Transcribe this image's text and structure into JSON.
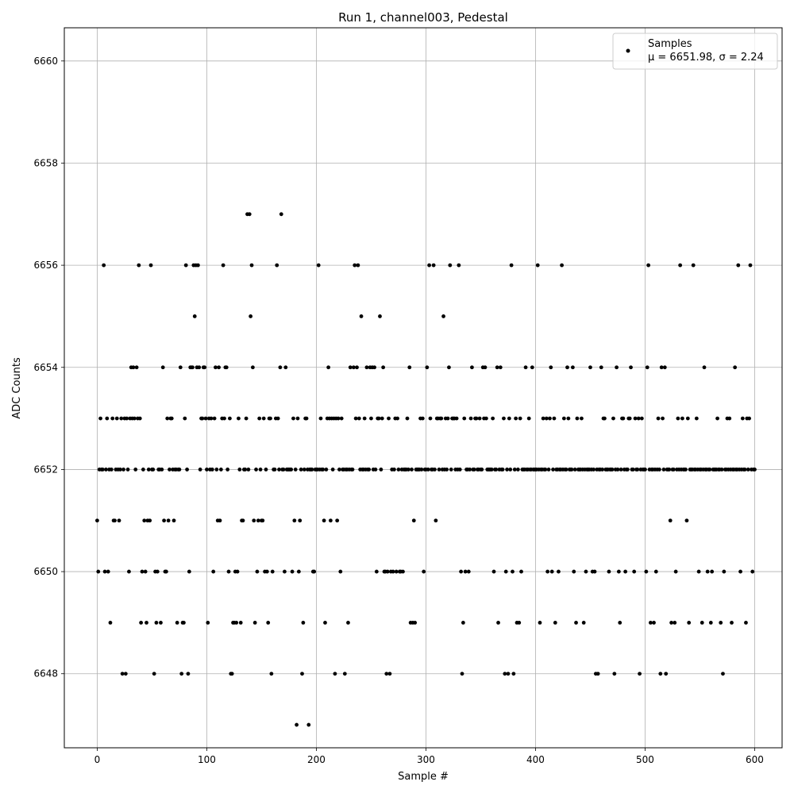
{
  "chart_data": {
    "type": "scatter",
    "title": "Run 1, channel003, Pedestal",
    "xlabel": "Sample #",
    "ylabel": "ADC Counts",
    "xlim": [
      -30,
      625
    ],
    "ylim": [
      6646.55,
      6660.65
    ],
    "xticks": [
      0,
      100,
      200,
      300,
      400,
      500,
      600
    ],
    "yticks": [
      6648,
      6650,
      6652,
      6654,
      6656,
      6658,
      6660
    ],
    "grid": true,
    "legend_position": "top-right",
    "legend": {
      "series_label": "Samples",
      "stats_label": "μ = 6651.98, σ = 2.24"
    },
    "series": [
      {
        "name": "Samples",
        "color": "#000000",
        "y": [
          6651,
          6650,
          6652,
          6653,
          6652,
          6652,
          6656,
          6650,
          6652,
          6653,
          6650,
          6652,
          6649,
          6652,
          6653,
          6651,
          6651,
          6652,
          6653,
          6652,
          6651,
          6652,
          6653,
          6648,
          6652,
          6653,
          6648,
          6653,
          6652,
          6650,
          6653,
          6654,
          6653,
          6654,
          6653,
          6652,
          6654,
          6653,
          6656,
          6653,
          6649,
          6650,
          6652,
          6651,
          6650,
          6649,
          6651,
          6652,
          6651,
          6656,
          6652,
          6652,
          6648,
          6650,
          6649,
          6650,
          6652,
          6652,
          6649,
          6652,
          6654,
          6651,
          6650,
          6650,
          6653,
          6651,
          6652,
          6653,
          6653,
          6652,
          6651,
          6652,
          6652,
          6649,
          6652,
          6652,
          6654,
          6648,
          6649,
          6649,
          6653,
          6656,
          6652,
          6648,
          6650,
          6654,
          6654,
          6654,
          6656,
          6655,
          6656,
          6654,
          6656,
          6654,
          6652,
          6653,
          6653,
          6654,
          6654,
          6653,
          6652,
          6649,
          6653,
          6652,
          6653,
          6652,
          6650,
          6653,
          6654,
          6652,
          6651,
          6654,
          6651,
          6652,
          6653,
          6656,
          6653,
          6654,
          6654,
          6652,
          6650,
          6653,
          6648,
          6648,
          6649,
          6649,
          6650,
          6649,
          6650,
          6653,
          6652,
          6649,
          6651,
          6651,
          6652,
          6652,
          6653,
          6657,
          6652,
          6657,
          6655,
          6656,
          6654,
          6651,
          6649,
          6652,
          6650,
          6651,
          6653,
          6652,
          6651,
          6651,
          6653,
          6650,
          6652,
          6650,
          6649,
          6653,
          6653,
          6648,
          6650,
          6652,
          6652,
          6653,
          6656,
          6653,
          6652,
          6654,
          6657,
          6652,
          6652,
          6650,
          6654,
          6652,
          6652,
          6652,
          6652,
          6652,
          6650,
          6653,
          6651,
          6652,
          6647,
          6653,
          6650,
          6651,
          6652,
          6648,
          6649,
          6652,
          6653,
          6653,
          6652,
          6647,
          6652,
          6652,
          6652,
          6650,
          6650,
          6652,
          6652,
          6652,
          6656,
          6652,
          6653,
          6652,
          6652,
          6651,
          6649,
          6652,
          6653,
          6654,
          6653,
          6651,
          6653,
          6652,
          6653,
          6648,
          6653,
          6651,
          6653,
          6652,
          6650,
          6653,
          6652,
          6652,
          6648,
          6652,
          6652,
          6649,
          6652,
          6654,
          6652,
          6652,
          6654,
          6656,
          6653,
          6654,
          6656,
          6653,
          6652,
          6655,
          6652,
          6652,
          6653,
          6652,
          6654,
          6652,
          6652,
          6654,
          6653,
          6654,
          6652,
          6654,
          6652,
          6650,
          6653,
          6653,
          6655,
          6652,
          6653,
          6654,
          6650,
          6650,
          6648,
          6650,
          6653,
          6648,
          6650,
          6652,
          6650,
          6652,
          6653,
          6650,
          6653,
          6652,
          6650,
          6650,
          6652,
          6650,
          6652,
          6652,
          6652,
          6653,
          6652,
          6654,
          6649,
          6652,
          6649,
          6651,
          6649,
          6652,
          6652,
          6652,
          6652,
          6653,
          6652,
          6653,
          6650,
          6652,
          6652,
          6654,
          6652,
          6656,
          6653,
          6652,
          6652,
          6656,
          6652,
          6651,
          6653,
          6653,
          6652,
          6653,
          6653,
          6652,
          6655,
          6652,
          6653,
          6652,
          6653,
          6654,
          6656,
          6652,
          6653,
          6653,
          6653,
          6652,
          6653,
          6652,
          6656,
          6652,
          6650,
          6648,
          6649,
          6653,
          6650,
          6652,
          6652,
          6650,
          6652,
          6653,
          6654,
          6652,
          6652,
          6653,
          6653,
          6652,
          6652,
          6653,
          6652,
          6652,
          6654,
          6653,
          6654,
          6653,
          6652,
          6652,
          6652,
          6652,
          6652,
          6653,
          6650,
          6652,
          6652,
          6654,
          6649,
          6652,
          6654,
          6652,
          6652,
          6653,
          6648,
          6650,
          6652,
          6648,
          6653,
          6652,
          6656,
          6650,
          6648,
          6652,
          6653,
          6649,
          6652,
          6649,
          6653,
          6650,
          6652,
          6652,
          6652,
          6654,
          6652,
          6652,
          6653,
          6652,
          6652,
          6654,
          6652,
          6652,
          6652,
          6652,
          6656,
          6652,
          6649,
          6652,
          6652,
          6653,
          6652,
          6652,
          6653,
          6650,
          6652,
          6653,
          6654,
          6650,
          6652,
          6653,
          6649,
          6652,
          6652,
          6650,
          6652,
          6652,
          6656,
          6652,
          6653,
          6652,
          6652,
          6654,
          6653,
          6652,
          6652,
          6652,
          6654,
          6650,
          6652,
          6649,
          6653,
          6652,
          6652,
          6652,
          6653,
          6652,
          6649,
          6652,
          6650,
          6652,
          6652,
          6652,
          6654,
          6652,
          6650,
          6652,
          6650,
          6648,
          6652,
          6648,
          6652,
          6652,
          6654,
          6652,
          6653,
          6653,
          6652,
          6652,
          6652,
          6650,
          6652,
          6652,
          6652,
          6653,
          6648,
          6652,
          6654,
          6652,
          6650,
          6649,
          6652,
          6653,
          6653,
          6652,
          6650,
          6652,
          6652,
          6653,
          6653,
          6654,
          6652,
          6652,
          6650,
          6653,
          6652,
          6652,
          6653,
          6648,
          6652,
          6653,
          6652,
          6652,
          6652,
          6650,
          6654,
          6656,
          6652,
          6649,
          6652,
          6652,
          6649,
          6652,
          6650,
          6652,
          6653,
          6652,
          6648,
          6654,
          6653,
          6652,
          6654,
          6648,
          6652,
          6652,
          6652,
          6651,
          6649,
          6652,
          6652,
          6649,
          6650,
          6652,
          6653,
          6652,
          6656,
          6652,
          6653,
          6652,
          6652,
          6652,
          6651,
          6653,
          6649,
          6652,
          6652,
          6652,
          6656,
          6652,
          6652,
          6653,
          6652,
          6650,
          6652,
          6652,
          6649,
          6652,
          6654,
          6652,
          6652,
          6650,
          6652,
          6652,
          6649,
          6650,
          6652,
          6652,
          6652,
          6652,
          6653,
          6652,
          6652,
          6649,
          6652,
          6648,
          6650,
          6652,
          6652,
          6653,
          6652,
          6653,
          6652,
          6649,
          6652,
          6652,
          6654,
          6652,
          6652,
          6656,
          6652,
          6650,
          6652,
          6653,
          6652,
          6652,
          6649,
          6653,
          6652,
          6653,
          6656,
          6652,
          6650,
          6652,
          6652
        ]
      }
    ]
  }
}
